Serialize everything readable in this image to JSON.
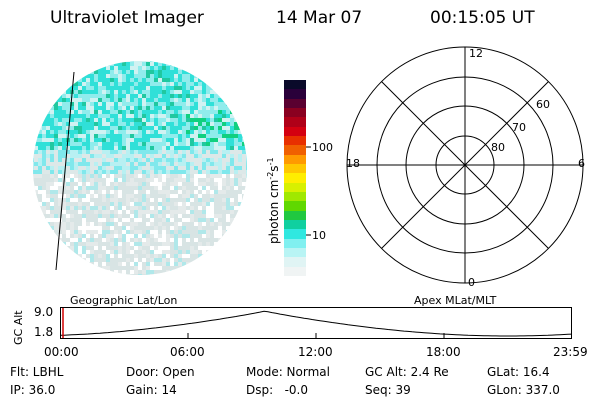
{
  "header": {
    "instrument": "Ultraviolet Imager",
    "date": "14 Mar 07",
    "time": "00:15:05 UT"
  },
  "colorbar": {
    "unit_label": "photon cm",
    "unit_sup1": "-2",
    "unit_mid": "s",
    "unit_sup2": "-1",
    "ticks": [
      "100",
      "10"
    ],
    "colors": [
      "#0a0a2a",
      "#2a003a",
      "#5a0030",
      "#8a0020",
      "#b00018",
      "#d40010",
      "#e83000",
      "#f06000",
      "#ff9a00",
      "#ffc800",
      "#ffee00",
      "#d8f000",
      "#a0e800",
      "#60d800",
      "#20c840",
      "#10d0a0",
      "#30e8e0",
      "#80f0f0",
      "#b8f4f4",
      "#e0f4f4",
      "#f0f4f4"
    ]
  },
  "polar": {
    "labels": {
      "top": "12",
      "left": "18",
      "right": "6",
      "bottom": "0",
      "lat60": "60",
      "lat70": "70",
      "lat80": "80"
    }
  },
  "timeline": {
    "axis_label": "GC Alt",
    "y_top": "9.0",
    "y_bottom": "1.8",
    "left_title": "Geographic Lat/Lon",
    "right_title": "Apex MLat/MLT",
    "x_ticks": [
      "00:00",
      "06:00",
      "12:00",
      "18:00",
      "23:59"
    ]
  },
  "footer": {
    "row1": [
      "Flt: LBHL",
      "Door: Open",
      "Mode: Normal",
      "GC Alt: 2.4 Re",
      "GLat: 16.4"
    ],
    "row2": [
      "IP: 36.0",
      "Gain: 14",
      "Dsp:   -0.0",
      "Seq: 39",
      "GLon: 337.0"
    ]
  }
}
